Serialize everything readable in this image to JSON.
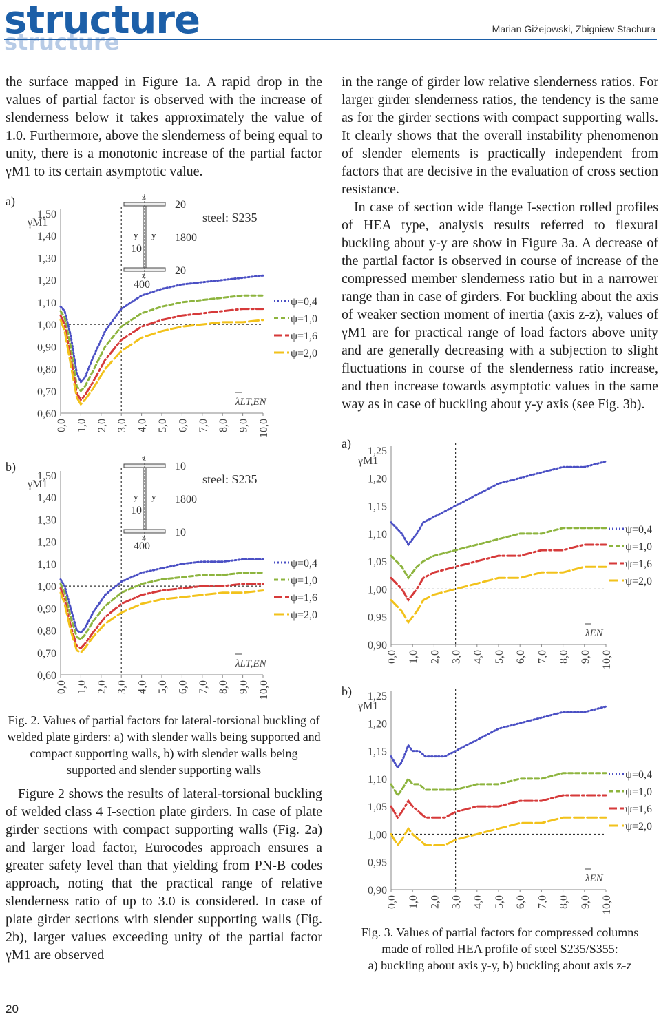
{
  "header": {
    "logo": "structure",
    "logo_shadow": "structure",
    "authors": "Marian Giżejowski, Zbigniew Stachura",
    "page_number": "20"
  },
  "left_top": "the surface mapped in Figure 1a. A rapid drop in the values of partial factor is observed with the increase of slenderness below it takes approximately the value of 1.0. Furthermore, above the slenderness of being equal to unity, there is a monotonic increase of the partial factor γM1 to its certain asymptotic value.",
  "labels": {
    "a": "a)",
    "b": "b)"
  },
  "fig2_caption": "Fig. 2. Values of partial factors for lateral-torsional buckling of welded plate girders: a) with slender walls being supported and compact supporting walls, b) with slender walls being supported and slender supporting walls",
  "left_bottom": "Figure 2 shows the results of lateral-torsional buckling of welded class 4 I-section plate girders. In case of plate girder sections with compact supporting walls (Fig. 2a) and larger load factor, Eurocodes approach ensures a greater safety level than that yielding from PN-B codes approach, noting that the practical range of relative slenderness ratio of up to 3.0 is considered. In case of plate girder sections with slender supporting walls (Fig. 2b), larger values exceeding unity of the partial factor γM1 are observed",
  "right_p1": "in the range of girder low relative slenderness ratios. For larger girder slenderness ratios, the tendency is the same as for the girder sections with compact supporting walls. It clearly shows that the overall instability phenomenon of slender elements is practically independent from factors that are decisive in the evaluation of cross section resistance.",
  "right_p2": "In case of section wide flange I-section rolled profiles of HEA type, analysis results referred to flexural buckling about y-y are show in Figure 3a. A decrease of the partial factor is observed in course of increase of the compressed member slenderness ratio but in a narrower range than in case of girders. For buckling about the axis of weaker section moment of inertia (axis z-z), values of γM1 are for practical range of load factors above unity and are generally decreasing with a subjection to slight fluctuations in course of the slenderness ratio increase, and then increase towards asymptotic values in the same way as in case of buckling about y-y axis (see Fig. 3b).",
  "fig3_caption_l1": "Fig. 3. Values of partial factors for compressed columns",
  "fig3_caption_l2": "made of rolled HEA profile of steel S235/S355:",
  "fig3_caption_l3": "a) buckling about axis y-y, b) buckling about axis z-z",
  "series_colors": {
    "psi04": "#4a4fc4",
    "psi10": "#8db43e",
    "psi16": "#d63a3a",
    "psi20": "#f2c21b"
  },
  "chart_data": [
    {
      "id": "fig2a",
      "type": "line",
      "ylabel": "γM1",
      "xlabel": "λLT,EN",
      "steel": "steel: S235",
      "section": {
        "flange": "20",
        "web_h": "1800",
        "web_t": "10",
        "width": "400",
        "axis_y": "y",
        "axis_z": "z"
      },
      "yticks": [
        "1,50",
        "1,40",
        "1,30",
        "1,20",
        "1,10",
        "1,00",
        "0,90",
        "0,80",
        "0,70",
        "0,60"
      ],
      "ylim": [
        0.6,
        1.5
      ],
      "xticks": [
        "0,0",
        "1,0",
        "2,0",
        "3,0",
        "4,0",
        "5,0",
        "6,0",
        "7,0",
        "8,0",
        "9,0",
        "10,0"
      ],
      "xlim": [
        0,
        10
      ],
      "series": [
        {
          "name": "ψ=0,4",
          "color": "#4a4fc4",
          "dash": "2,3",
          "x": [
            0,
            0.2,
            0.5,
            0.8,
            1.0,
            1.2,
            1.6,
            2.2,
            3,
            4,
            5,
            6,
            7,
            8,
            9,
            10
          ],
          "y": [
            1.08,
            1.06,
            0.95,
            0.78,
            0.74,
            0.76,
            0.85,
            0.97,
            1.07,
            1.13,
            1.16,
            1.18,
            1.19,
            1.2,
            1.21,
            1.22
          ]
        },
        {
          "name": "ψ=1,0",
          "color": "#8db43e",
          "dash": "6,4",
          "x": [
            0,
            0.2,
            0.5,
            0.8,
            1.0,
            1.2,
            1.6,
            2.2,
            3,
            4,
            5,
            6,
            7,
            8,
            9,
            10
          ],
          "y": [
            1.06,
            1.03,
            0.9,
            0.72,
            0.7,
            0.72,
            0.79,
            0.9,
            0.99,
            1.05,
            1.08,
            1.1,
            1.11,
            1.12,
            1.13,
            1.13
          ]
        },
        {
          "name": "ψ=1,6",
          "color": "#d63a3a",
          "dash": "12,4,3,4",
          "x": [
            0,
            0.2,
            0.5,
            0.8,
            1.0,
            1.2,
            1.6,
            2.2,
            3,
            4,
            5,
            6,
            7,
            8,
            9,
            10
          ],
          "y": [
            1.04,
            1.0,
            0.85,
            0.69,
            0.66,
            0.68,
            0.74,
            0.84,
            0.93,
            0.99,
            1.02,
            1.04,
            1.05,
            1.06,
            1.07,
            1.07
          ]
        },
        {
          "name": "ψ=2,0",
          "color": "#f2c21b",
          "dash": "14,5",
          "x": [
            0,
            0.2,
            0.5,
            0.8,
            1.0,
            1.2,
            1.6,
            2.2,
            3,
            4,
            5,
            6,
            7,
            8,
            9,
            10
          ],
          "y": [
            1.02,
            0.97,
            0.82,
            0.67,
            0.64,
            0.66,
            0.71,
            0.8,
            0.88,
            0.94,
            0.97,
            0.99,
            1.0,
            1.01,
            1.01,
            1.02
          ]
        }
      ]
    },
    {
      "id": "fig2b",
      "type": "line",
      "ylabel": "γM1",
      "xlabel": "λLT,EN",
      "steel": "steel: S235",
      "section": {
        "flange": "10",
        "web_h": "1800",
        "web_t": "10",
        "width": "400",
        "axis_y": "y",
        "axis_z": "z"
      },
      "yticks": [
        "1,50",
        "1,40",
        "1,30",
        "1,20",
        "1,10",
        "1,00",
        "0,90",
        "0,80",
        "0,70",
        "0,60"
      ],
      "ylim": [
        0.6,
        1.5
      ],
      "xticks": [
        "0,0",
        "1,0",
        "2,0",
        "3,0",
        "4,0",
        "5,0",
        "6,0",
        "7,0",
        "8,0",
        "9,0",
        "10,0"
      ],
      "xlim": [
        0,
        10
      ],
      "series": [
        {
          "name": "ψ=0,4",
          "color": "#4a4fc4",
          "dash": "2,3",
          "x": [
            0,
            0.2,
            0.5,
            0.8,
            1.0,
            1.2,
            1.6,
            2.2,
            3,
            4,
            5,
            6,
            7,
            8,
            9,
            10
          ],
          "y": [
            1.03,
            1.0,
            0.9,
            0.8,
            0.79,
            0.81,
            0.88,
            0.96,
            1.02,
            1.06,
            1.08,
            1.1,
            1.11,
            1.11,
            1.12,
            1.12
          ]
        },
        {
          "name": "ψ=1,0",
          "color": "#8db43e",
          "dash": "6,4",
          "x": [
            0,
            0.2,
            0.5,
            0.8,
            1.0,
            1.2,
            1.6,
            2.2,
            3,
            4,
            5,
            6,
            7,
            8,
            9,
            10
          ],
          "y": [
            1.01,
            0.97,
            0.86,
            0.77,
            0.76,
            0.78,
            0.84,
            0.91,
            0.97,
            1.01,
            1.03,
            1.04,
            1.05,
            1.05,
            1.06,
            1.06
          ]
        },
        {
          "name": "ψ=1,6",
          "color": "#d63a3a",
          "dash": "12,4,3,4",
          "x": [
            0,
            0.2,
            0.5,
            0.8,
            1.0,
            1.2,
            1.6,
            2.2,
            3,
            4,
            5,
            6,
            7,
            8,
            9,
            10
          ],
          "y": [
            0.99,
            0.94,
            0.82,
            0.73,
            0.72,
            0.74,
            0.79,
            0.86,
            0.92,
            0.96,
            0.98,
            0.99,
            1.0,
            1.0,
            1.01,
            1.01
          ]
        },
        {
          "name": "ψ=2,0",
          "color": "#f2c21b",
          "dash": "14,5",
          "x": [
            0,
            0.2,
            0.5,
            0.8,
            1.0,
            1.2,
            1.6,
            2.2,
            3,
            4,
            5,
            6,
            7,
            8,
            9,
            10
          ],
          "y": [
            0.97,
            0.92,
            0.8,
            0.71,
            0.7,
            0.72,
            0.77,
            0.83,
            0.88,
            0.92,
            0.94,
            0.95,
            0.96,
            0.97,
            0.97,
            0.98
          ]
        }
      ]
    },
    {
      "id": "fig3a",
      "type": "line",
      "ylabel": "γM1",
      "xlabel": "λEN",
      "yticks": [
        "1,25",
        "1,20",
        "1,15",
        "1,10",
        "1,05",
        "1,00",
        "0,95",
        "0,90"
      ],
      "ylim": [
        0.9,
        1.25
      ],
      "xticks": [
        "0,0",
        "1,0",
        "2,0",
        "3,0",
        "4,0",
        "5,0",
        "6,0",
        "7,0",
        "8,0",
        "9,0",
        "10,0"
      ],
      "xlim": [
        0,
        10
      ],
      "series": [
        {
          "name": "ψ=0,4",
          "color": "#4a4fc4",
          "dash": "2,3",
          "x": [
            0,
            0.5,
            0.8,
            1.0,
            1.2,
            1.5,
            2,
            3,
            4,
            5,
            6,
            7,
            8,
            9,
            10
          ],
          "y": [
            1.12,
            1.1,
            1.08,
            1.09,
            1.1,
            1.12,
            1.13,
            1.15,
            1.17,
            1.19,
            1.2,
            1.21,
            1.22,
            1.22,
            1.23
          ]
        },
        {
          "name": "ψ=1,0",
          "color": "#8db43e",
          "dash": "6,4",
          "x": [
            0,
            0.5,
            0.8,
            1.0,
            1.2,
            1.5,
            2,
            3,
            4,
            5,
            6,
            7,
            8,
            9,
            10
          ],
          "y": [
            1.06,
            1.04,
            1.02,
            1.03,
            1.04,
            1.05,
            1.06,
            1.07,
            1.08,
            1.09,
            1.1,
            1.1,
            1.11,
            1.11,
            1.11
          ]
        },
        {
          "name": "ψ=1,6",
          "color": "#d63a3a",
          "dash": "12,4,3,4",
          "x": [
            0,
            0.5,
            0.8,
            1.0,
            1.2,
            1.5,
            2,
            3,
            4,
            5,
            6,
            7,
            8,
            9,
            10
          ],
          "y": [
            1.02,
            1.0,
            0.98,
            0.99,
            1.0,
            1.02,
            1.03,
            1.04,
            1.05,
            1.06,
            1.06,
            1.07,
            1.07,
            1.08,
            1.08
          ]
        },
        {
          "name": "ψ=2,0",
          "color": "#f2c21b",
          "dash": "14,5",
          "x": [
            0,
            0.5,
            0.8,
            1.0,
            1.2,
            1.5,
            2,
            3,
            4,
            5,
            6,
            7,
            8,
            9,
            10
          ],
          "y": [
            0.98,
            0.96,
            0.94,
            0.95,
            0.96,
            0.98,
            0.99,
            1.0,
            1.01,
            1.02,
            1.02,
            1.03,
            1.03,
            1.04,
            1.04
          ]
        }
      ]
    },
    {
      "id": "fig3b",
      "type": "line",
      "ylabel": "γM1",
      "xlabel": "λEN",
      "yticks": [
        "1,25",
        "1,20",
        "1,15",
        "1,10",
        "1,05",
        "1,00",
        "0,95",
        "0,90"
      ],
      "ylim": [
        0.9,
        1.25
      ],
      "xticks": [
        "0,0",
        "1,0",
        "2,0",
        "3,0",
        "4,0",
        "5,0",
        "6,0",
        "7,0",
        "8,0",
        "9,0",
        "10,0"
      ],
      "xlim": [
        0,
        10
      ],
      "series": [
        {
          "name": "ψ=0,4",
          "color": "#4a4fc4",
          "dash": "2,3",
          "x": [
            0,
            0.3,
            0.5,
            0.8,
            1.0,
            1.3,
            1.6,
            2,
            2.5,
            3,
            4,
            5,
            6,
            7,
            8,
            9,
            10
          ],
          "y": [
            1.14,
            1.12,
            1.13,
            1.16,
            1.15,
            1.15,
            1.14,
            1.14,
            1.14,
            1.15,
            1.17,
            1.19,
            1.2,
            1.21,
            1.22,
            1.22,
            1.23
          ]
        },
        {
          "name": "ψ=1,0",
          "color": "#8db43e",
          "dash": "6,4",
          "x": [
            0,
            0.3,
            0.5,
            0.8,
            1.0,
            1.3,
            1.6,
            2,
            2.5,
            3,
            4,
            5,
            6,
            7,
            8,
            9,
            10
          ],
          "y": [
            1.09,
            1.07,
            1.08,
            1.1,
            1.09,
            1.09,
            1.08,
            1.08,
            1.08,
            1.08,
            1.09,
            1.09,
            1.1,
            1.1,
            1.11,
            1.11,
            1.11
          ]
        },
        {
          "name": "ψ=1,6",
          "color": "#d63a3a",
          "dash": "12,4,3,4",
          "x": [
            0,
            0.3,
            0.5,
            0.8,
            1.0,
            1.3,
            1.6,
            2,
            2.5,
            3,
            4,
            5,
            6,
            7,
            8,
            9,
            10
          ],
          "y": [
            1.05,
            1.03,
            1.04,
            1.06,
            1.05,
            1.04,
            1.03,
            1.03,
            1.03,
            1.04,
            1.05,
            1.05,
            1.06,
            1.06,
            1.07,
            1.07,
            1.07
          ]
        },
        {
          "name": "ψ=2,0",
          "color": "#f2c21b",
          "dash": "14,5",
          "x": [
            0,
            0.3,
            0.5,
            0.8,
            1.0,
            1.3,
            1.6,
            2,
            2.5,
            3,
            4,
            5,
            6,
            7,
            8,
            9,
            10
          ],
          "y": [
            1.0,
            0.98,
            0.99,
            1.01,
            1.0,
            0.99,
            0.98,
            0.98,
            0.98,
            0.99,
            1.0,
            1.01,
            1.02,
            1.02,
            1.03,
            1.03,
            1.03
          ]
        }
      ]
    }
  ]
}
